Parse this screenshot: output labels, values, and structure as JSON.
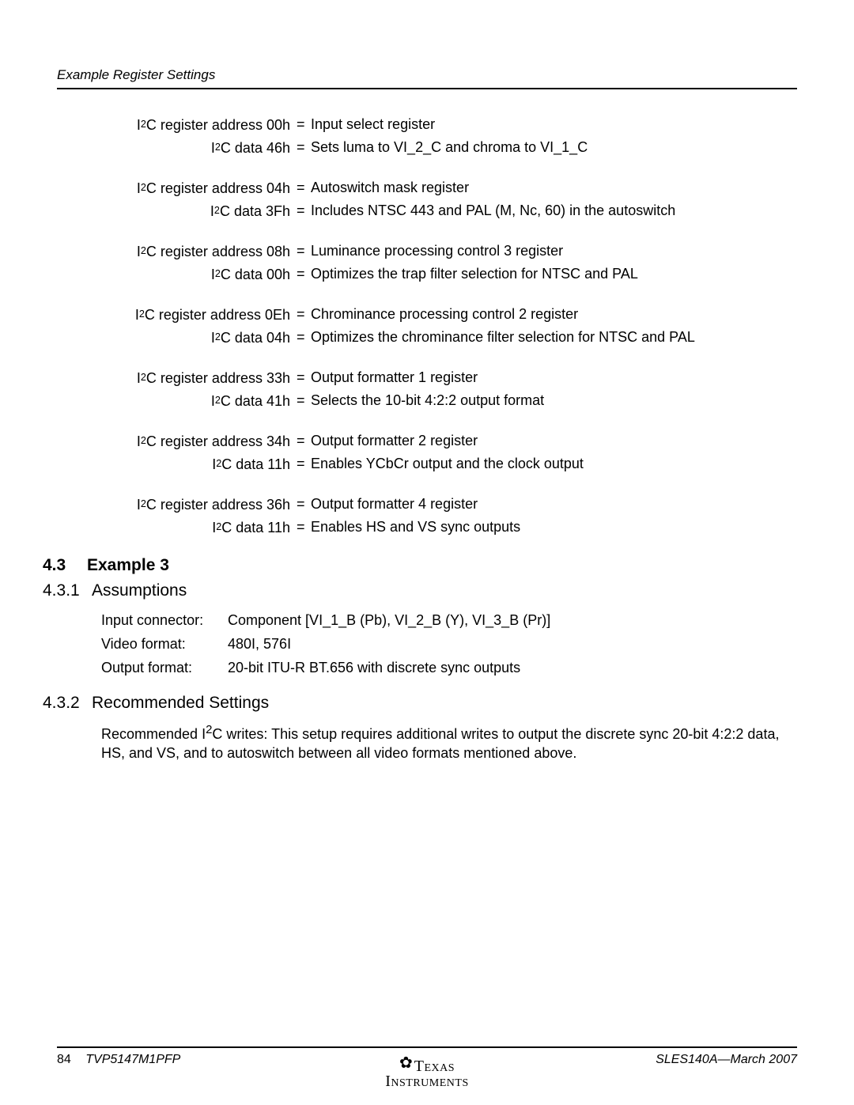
{
  "header": {
    "title": "Example Register Settings"
  },
  "regs": [
    {
      "addr_label": "register address 00h",
      "addr_desc": "Input select register",
      "data_label": "data 46h",
      "data_desc": "Sets luma to VI_2_C and chroma to VI_1_C"
    },
    {
      "addr_label": "register address 04h",
      "addr_desc": "Autoswitch mask register",
      "data_label": "data 3Fh",
      "data_desc": "Includes NTSC 443 and PAL (M, Nc, 60) in the autoswitch"
    },
    {
      "addr_label": "register address 08h",
      "addr_desc": "Luminance processing control 3 register",
      "data_label": "data 00h",
      "data_desc": "Optimizes the trap filter selection for NTSC and PAL"
    },
    {
      "addr_label": "register address 0Eh",
      "addr_desc": "Chrominance processing control 2 register",
      "data_label": "data 04h",
      "data_desc": "Optimizes the chrominance filter selection for NTSC and PAL"
    },
    {
      "addr_label": "register address 33h",
      "addr_desc": "Output formatter 1 register",
      "data_label": "data 41h",
      "data_desc": "Selects the 10-bit 4:2:2 output format"
    },
    {
      "addr_label": "register address 34h",
      "addr_desc": "Output formatter 2 register",
      "data_label": "data 11h",
      "data_desc": "Enables YCbCr output and the clock output"
    },
    {
      "addr_label": "register address 36h",
      "addr_desc": "Output formatter 4 register",
      "data_label": "data 11h",
      "data_desc": "Enables HS and VS sync outputs"
    }
  ],
  "sections": {
    "s43": {
      "num": "4.3",
      "title": "Example 3"
    },
    "s431": {
      "num": "4.3.1",
      "title": "Assumptions"
    },
    "s432": {
      "num": "4.3.2",
      "title": "Recommended Settings"
    }
  },
  "assumptions": {
    "input_label": "Input connector:",
    "input_value": "Component [VI_1_B (Pb), VI_2_B (Y), VI_3_B (Pr)]",
    "video_label": "Video format:",
    "video_value": "480I, 576I",
    "output_label": "Output format:",
    "output_value": "20-bit ITU-R BT.656 with discrete sync outputs"
  },
  "recommended": {
    "prefix": "Recommended I",
    "suffix": "C writes: This setup requires additional writes to output the discrete sync 20-bit 4:2:2 data, HS, and VS, and to autoswitch between all video formats mentioned above."
  },
  "footer": {
    "page": "84",
    "doc": "TVP5147M1PFP",
    "rev": "SLES140A—March 2007",
    "logo_top": "Texas",
    "logo_bottom": "Instruments"
  },
  "i2c_prefix": "I",
  "i2c_sup": "2",
  "i2c_suffix": "C "
}
